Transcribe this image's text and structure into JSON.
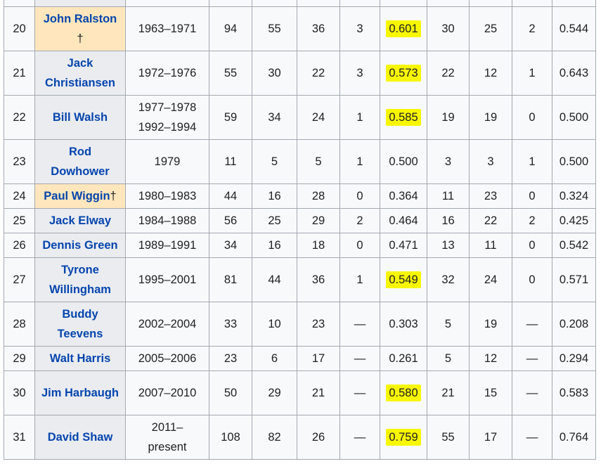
{
  "rows": [
    {
      "num": "20",
      "name": "John Ralston",
      "dagger": "†",
      "hof": true,
      "years": "1963–1971",
      "g": "94",
      "w": "55",
      "l": "36",
      "t": "3",
      "pct": "0.601",
      "hl": true,
      "cw": "30",
      "cl": "25",
      "ct": "2",
      "cpct": "0.544",
      "tall": true
    },
    {
      "num": "21",
      "name": "Jack Christiansen",
      "dagger": "",
      "hof": false,
      "years": "1972–1976",
      "g": "55",
      "w": "30",
      "l": "22",
      "t": "3",
      "pct": "0.573",
      "hl": true,
      "cw": "22",
      "cl": "12",
      "ct": "1",
      "cpct": "0.643",
      "tall": true
    },
    {
      "num": "22",
      "name": "Bill Walsh",
      "dagger": "",
      "hof": false,
      "years": "1977–1978\n1992–1994",
      "g": "59",
      "w": "34",
      "l": "24",
      "t": "1",
      "pct": "0.585",
      "hl": true,
      "cw": "19",
      "cl": "19",
      "ct": "0",
      "cpct": "0.500",
      "tall": true
    },
    {
      "num": "23",
      "name": "Rod Dowhower",
      "dagger": "",
      "hof": false,
      "years": "1979",
      "g": "11",
      "w": "5",
      "l": "5",
      "t": "1",
      "pct": "0.500",
      "hl": false,
      "cw": "3",
      "cl": "3",
      "ct": "1",
      "cpct": "0.500",
      "tall": true
    },
    {
      "num": "24",
      "name": "Paul Wiggin",
      "dagger": "†",
      "hof": true,
      "years": "1980–1983",
      "g": "44",
      "w": "16",
      "l": "28",
      "t": "0",
      "pct": "0.364",
      "hl": false,
      "cw": "11",
      "cl": "23",
      "ct": "0",
      "cpct": "0.324",
      "tall": false
    },
    {
      "num": "25",
      "name": "Jack Elway",
      "dagger": "",
      "hof": false,
      "years": "1984–1988",
      "g": "56",
      "w": "25",
      "l": "29",
      "t": "2",
      "pct": "0.464",
      "hl": false,
      "cw": "16",
      "cl": "22",
      "ct": "2",
      "cpct": "0.425",
      "tall": false
    },
    {
      "num": "26",
      "name": "Dennis Green",
      "dagger": "",
      "hof": false,
      "years": "1989–1991",
      "g": "34",
      "w": "16",
      "l": "18",
      "t": "0",
      "pct": "0.471",
      "hl": false,
      "cw": "13",
      "cl": "11",
      "ct": "0",
      "cpct": "0.542",
      "tall": false
    },
    {
      "num": "27",
      "name": "Tyrone Willingham",
      "dagger": "",
      "hof": false,
      "years": "1995–2001",
      "g": "81",
      "w": "44",
      "l": "36",
      "t": "1",
      "pct": "0.549",
      "hl": true,
      "cw": "32",
      "cl": "24",
      "ct": "0",
      "cpct": "0.571",
      "tall": true
    },
    {
      "num": "28",
      "name": "Buddy Teevens",
      "dagger": "",
      "hof": false,
      "years": "2002–2004",
      "g": "33",
      "w": "10",
      "l": "23",
      "t": "—",
      "pct": "0.303",
      "hl": false,
      "cw": "5",
      "cl": "19",
      "ct": "—",
      "cpct": "0.208",
      "tall": true
    },
    {
      "num": "29",
      "name": "Walt Harris",
      "dagger": "",
      "hof": false,
      "years": "2005–2006",
      "g": "23",
      "w": "6",
      "l": "17",
      "t": "—",
      "pct": "0.261",
      "hl": false,
      "cw": "5",
      "cl": "12",
      "ct": "—",
      "cpct": "0.294",
      "tall": false
    },
    {
      "num": "30",
      "name": "Jim Harbaugh",
      "dagger": "",
      "hof": false,
      "years": "2007–2010",
      "g": "50",
      "w": "29",
      "l": "21",
      "t": "—",
      "pct": "0.580",
      "hl": true,
      "cw": "21",
      "cl": "15",
      "ct": "—",
      "cpct": "0.583",
      "tall": true
    },
    {
      "num": "31",
      "name": "David Shaw",
      "dagger": "",
      "hof": false,
      "years": "2011–\npresent",
      "g": "108",
      "w": "82",
      "l": "26",
      "t": "—",
      "pct": "0.759",
      "hl": true,
      "cw": "55",
      "cl": "17",
      "ct": "—",
      "cpct": "0.764",
      "tall": true
    }
  ],
  "colors": {
    "highlight": "#f7f700",
    "hof": "#ffe6bd",
    "name_bg": "#eaecf0",
    "link": "#0645ad"
  }
}
